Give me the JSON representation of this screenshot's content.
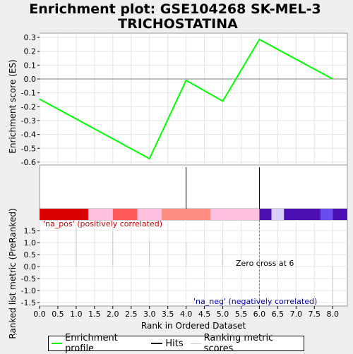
{
  "chart_data": {
    "type": "line",
    "title_lines": [
      "Enrichment plot: GSE104268 SK-MEL-3",
      "TRICHOSTATINA"
    ],
    "xlabel": "Rank in Ordered Dataset",
    "ylabel_top": "Enrichment score (ES)",
    "ylabel_bottom": "Ranked list metric (PreRanked)",
    "xlim": [
      0,
      8.4
    ],
    "x_ticks": [
      0.0,
      0.5,
      1.0,
      1.5,
      2.0,
      2.5,
      3.0,
      3.5,
      4.0,
      4.5,
      5.0,
      5.5,
      6.0,
      6.5,
      7.0,
      7.5,
      8.0
    ],
    "x_tick_labels": [
      "0.0",
      "0.5",
      "1.0",
      "1.5",
      "2.0",
      "2.5",
      "3.0",
      "3.5",
      "4.0",
      "4.5",
      "5.0",
      "5.5",
      "6.0",
      "6.5",
      "7.0",
      "7.5",
      "8.0"
    ],
    "es_ylim": [
      -0.62,
      0.33
    ],
    "es_ticks": [
      0.3,
      0.2,
      0.1,
      0.0,
      -0.1,
      -0.2,
      -0.3,
      -0.4,
      -0.5,
      -0.6
    ],
    "es_tick_labels": [
      "0.3",
      "0.2",
      "0.1",
      "0.0",
      "-0.1",
      "-0.2",
      "-0.3",
      "-0.4",
      "-0.5",
      "-0.6"
    ],
    "series": [
      {
        "name": "Enrichment profile",
        "color": "#00ff00",
        "x": [
          0,
          3,
          4,
          5,
          6,
          8
        ],
        "y": [
          -0.145,
          -0.575,
          -0.01,
          -0.16,
          0.285,
          0.0
        ]
      }
    ],
    "hits": [
      4,
      6
    ],
    "heat_bar": [
      {
        "x0": 0.0,
        "x1": 1.33,
        "color": "#d80000"
      },
      {
        "x0": 1.33,
        "x1": 2.0,
        "color": "#ffc0e0"
      },
      {
        "x0": 2.0,
        "x1": 2.67,
        "color": "#ff5a5a"
      },
      {
        "x0": 2.67,
        "x1": 3.33,
        "color": "#ffc0e0"
      },
      {
        "x0": 3.33,
        "x1": 4.67,
        "color": "#ff8c82"
      },
      {
        "x0": 4.67,
        "x1": 6.0,
        "color": "#ffc0e0"
      },
      {
        "x0": 6.0,
        "x1": 6.33,
        "color": "#4b0fb3"
      },
      {
        "x0": 6.33,
        "x1": 6.67,
        "color": "#d8d0f4"
      },
      {
        "x0": 6.67,
        "x1": 7.67,
        "color": "#4b0fb3"
      },
      {
        "x0": 7.67,
        "x1": 8.0,
        "color": "#6a4df0"
      },
      {
        "x0": 8.0,
        "x1": 8.4,
        "color": "#4b0fb3"
      }
    ],
    "metric_ylim": [
      -1.6,
      1.6
    ],
    "metric_ticks": [
      1.5,
      1.0,
      0.5,
      0.0,
      -0.5,
      -1.0,
      -1.5
    ],
    "metric_tick_labels": [
      "1.5",
      "1.0",
      "0.5",
      "0.0",
      "-0.5",
      "-1.0",
      "-1.5"
    ],
    "metric_bars": [
      {
        "x": 1,
        "value": 1.6
      },
      {
        "x": 2,
        "value": 1.45
      },
      {
        "x": 3,
        "value": 1.08
      },
      {
        "x": 4,
        "value": 1.0
      },
      {
        "x": 5,
        "value": 0.75
      },
      {
        "x": 7,
        "value": 0.0
      },
      {
        "x": 8,
        "value": -1.6
      }
    ],
    "zero_cross": 6,
    "annotations": {
      "pos": "'na_pos' (positively correlated)",
      "neg": "'na_neg' (negatively correlated)",
      "zero": "Zero cross at 6"
    },
    "colors": {
      "pos_text": "#cc0000",
      "neg_text": "#0000aa",
      "profile": "#00ff00"
    }
  },
  "legend": {
    "items": [
      {
        "label": "Enrichment profile",
        "color": "#00ff00"
      },
      {
        "label": "Hits",
        "color": "#000000"
      },
      {
        "label": "Ranking metric scores",
        "color": "#c8c8c8"
      }
    ]
  }
}
